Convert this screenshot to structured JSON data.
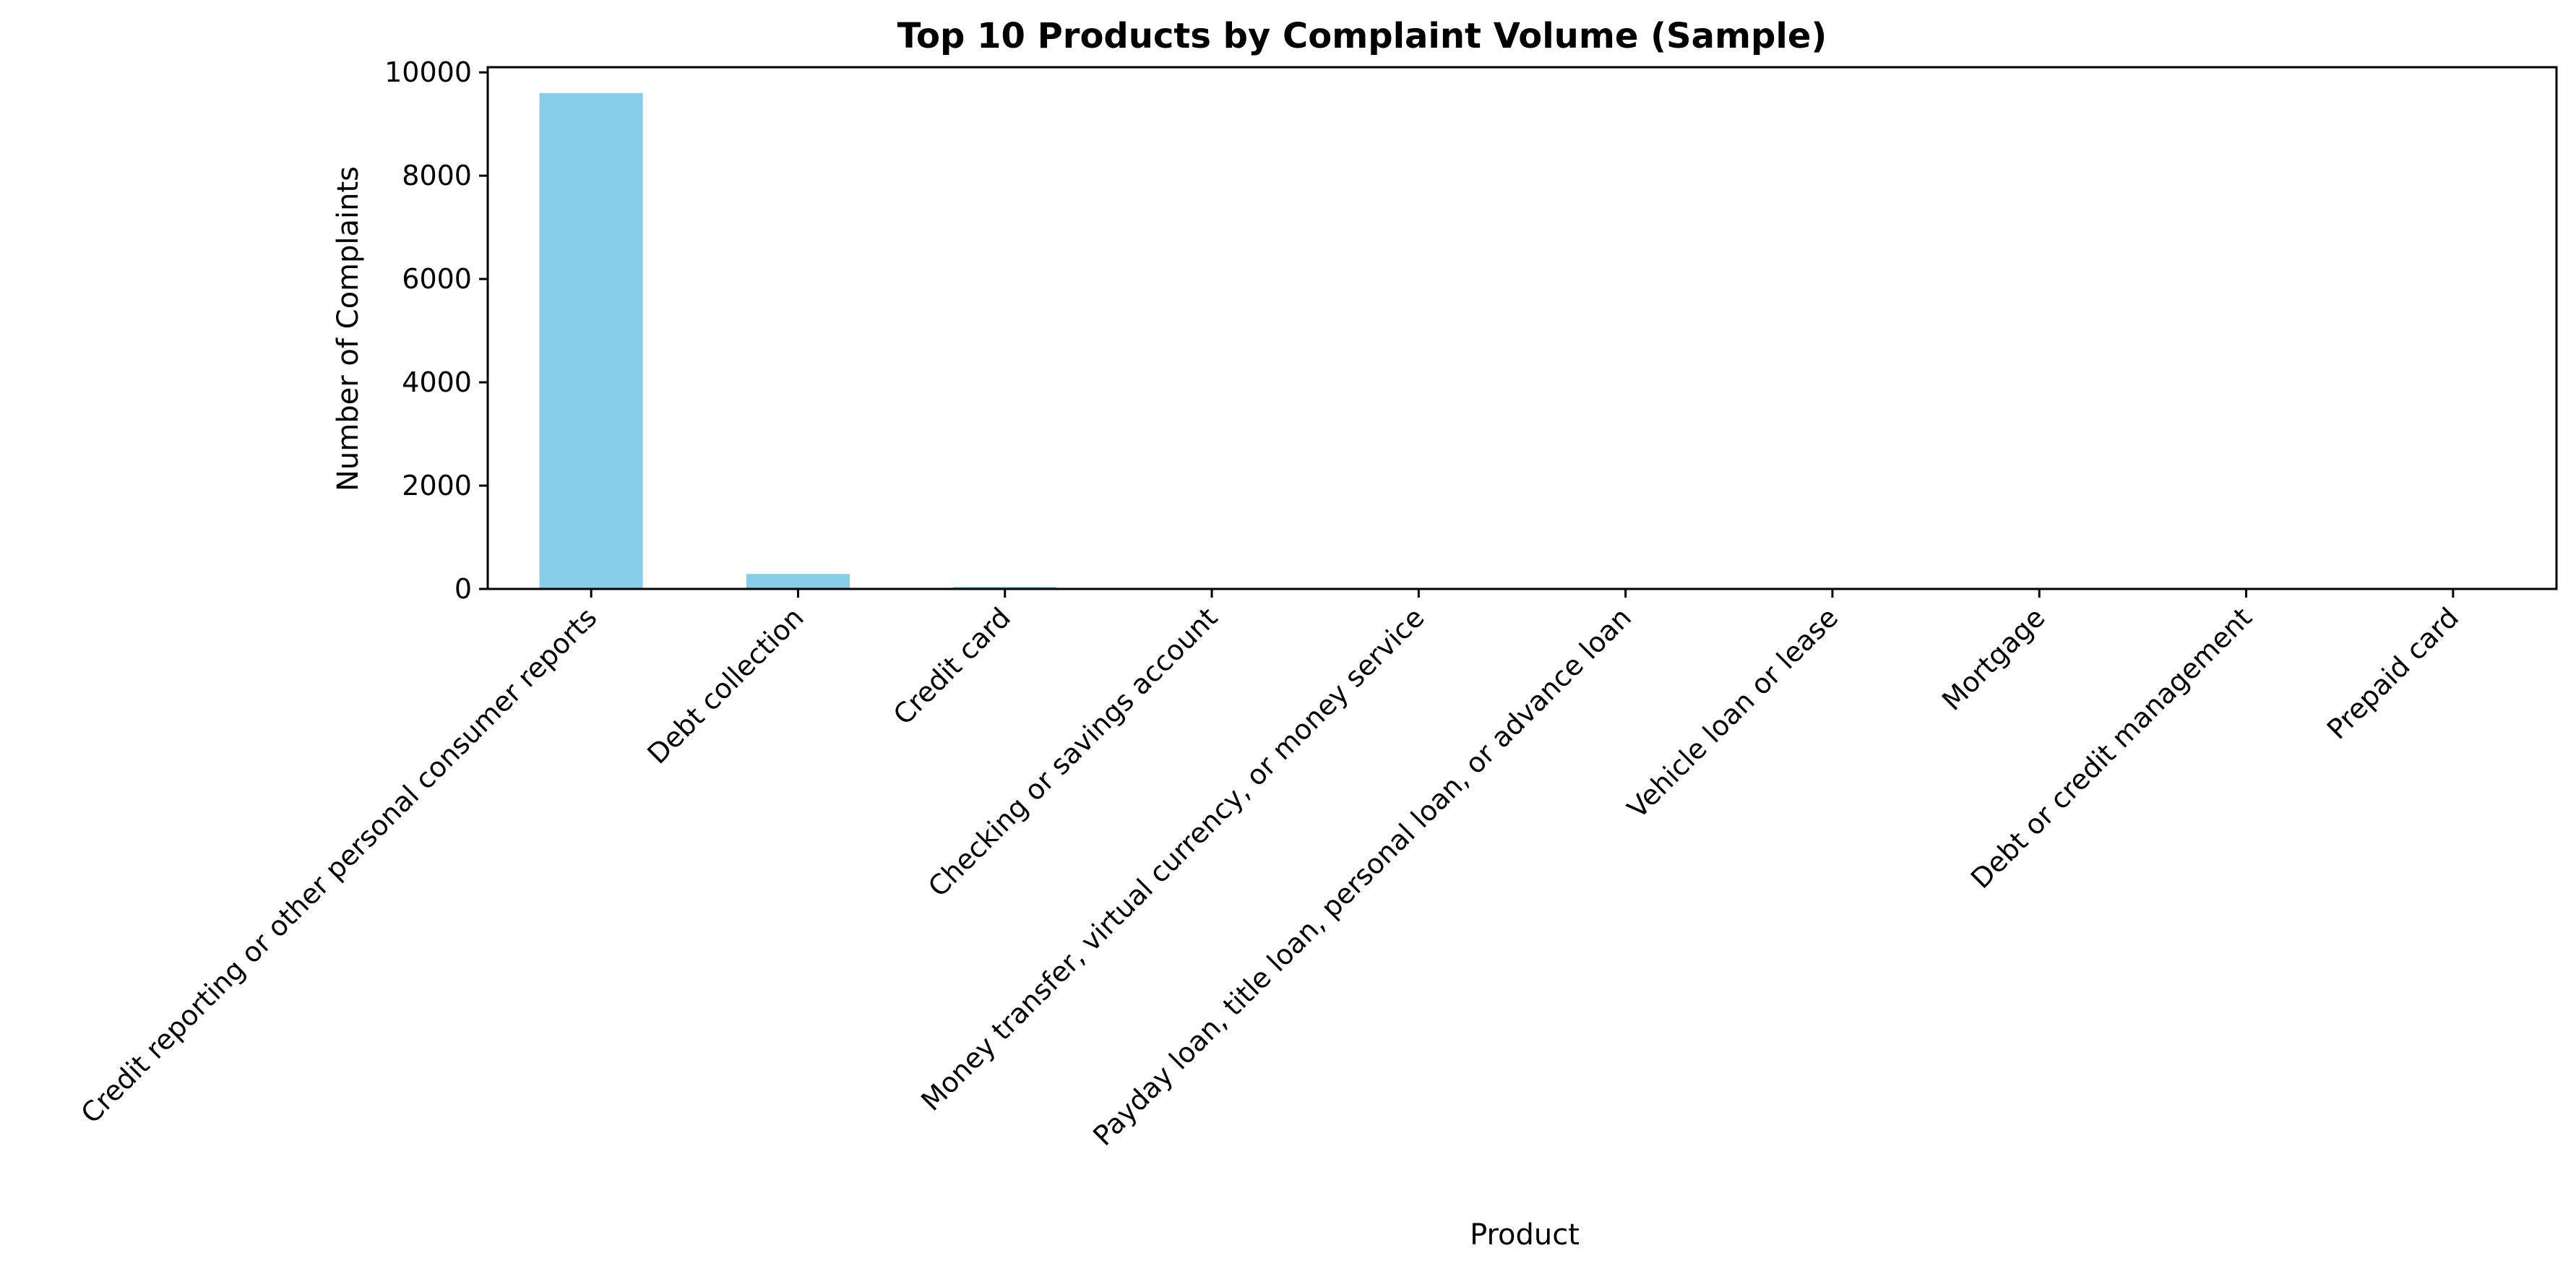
{
  "chart_data": {
    "type": "bar",
    "title": "Top 10 Products by Complaint Volume (Sample)",
    "xlabel": "Product",
    "ylabel": "Number of Complaints",
    "categories": [
      "Credit reporting or other personal consumer reports",
      "Debt collection",
      "Credit card",
      "Checking or savings account",
      "Money transfer, virtual currency, or money service",
      "Payday loan, title loan, personal loan, or advance loan",
      "Vehicle loan or lease",
      "Mortgage",
      "Debt or credit management",
      "Prepaid card"
    ],
    "values": [
      9600,
      290,
      40,
      20,
      15,
      6,
      5,
      4,
      3,
      2
    ],
    "ylim": [
      0,
      10100
    ],
    "yticks": [
      0,
      2000,
      4000,
      6000,
      8000,
      10000
    ],
    "ytick_labels": [
      "0",
      "2000",
      "4000",
      "6000",
      "8000",
      "10000"
    ],
    "bar_color": "#87CEEB",
    "grid": false,
    "legend": "none"
  }
}
